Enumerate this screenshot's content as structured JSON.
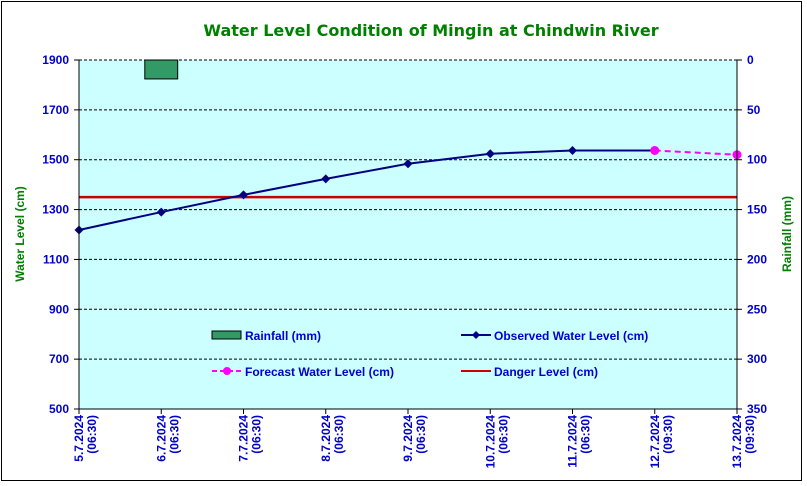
{
  "chart_data": {
    "type": "line",
    "title": "Water Level Condition of Mingin at Chindwin River",
    "xlabel": "",
    "ylabel": "Water Level (cm)",
    "y2label": "Rainfall (mm)",
    "categories": [
      [
        "5.7.2024",
        "(06:30)"
      ],
      [
        "6.7.2024",
        "(06:30)"
      ],
      [
        "7.7.2024",
        "(06:30)"
      ],
      [
        "8.7.2024",
        "(06:30)"
      ],
      [
        "9.7.2024",
        "(06:30)"
      ],
      [
        "10.7.2024",
        "(06:30)"
      ],
      [
        "11.7.2024",
        "(06:30)"
      ],
      [
        "12.7.2024",
        "(09:30)"
      ],
      [
        "13.7.2024",
        "(09:30)"
      ]
    ],
    "ylim": [
      500,
      1900
    ],
    "yticks": [
      500,
      700,
      900,
      1100,
      1300,
      1500,
      1700,
      1900
    ],
    "y2lim": [
      0,
      350
    ],
    "y2ticks": [
      0,
      50,
      100,
      150,
      200,
      250,
      300,
      350
    ],
    "y2_inverted": true,
    "grid": true,
    "series": [
      {
        "name": "Rainfall (mm)",
        "kind": "bar",
        "axis": "right",
        "color": "#339966",
        "values": [
          null,
          19,
          null,
          null,
          null,
          null,
          null,
          null,
          null
        ]
      },
      {
        "name": "Observed Water Level (cm)",
        "kind": "line",
        "axis": "left",
        "color": "#000080",
        "marker": "diamond",
        "values": [
          1218,
          1290,
          1359,
          1423,
          1484,
          1524,
          1537,
          1537,
          null
        ]
      },
      {
        "name": "Forecast Water Level (cm)",
        "kind": "line-dashed",
        "axis": "left",
        "color": "#ff00ff",
        "marker": "circle",
        "values": [
          null,
          null,
          null,
          null,
          null,
          null,
          null,
          1537,
          1520
        ]
      },
      {
        "name": "Danger Level (cm)",
        "kind": "hline",
        "axis": "left",
        "color": "#cc0000",
        "value": 1350
      }
    ],
    "legend": {
      "placement": "inside-bottom",
      "entries": [
        "Rainfall (mm)",
        "Observed Water Level (cm)",
        "Forecast Water Level (cm)",
        "Danger Level (cm)"
      ]
    },
    "colors": {
      "plot_background": "#ccffff",
      "tick_text": "#0000cc",
      "axis_title": "#008000"
    }
  }
}
